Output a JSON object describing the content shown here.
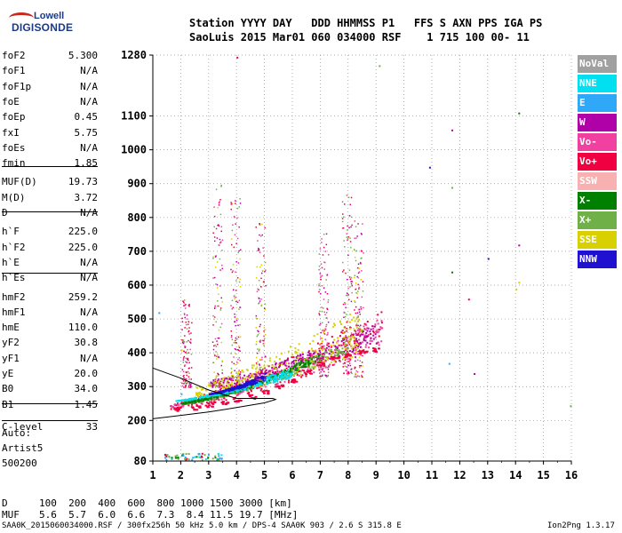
{
  "logo": {
    "line1": "Lowell",
    "line2": "DIGISONDE"
  },
  "header": {
    "line1": "Station YYYY DAY   DDD HHMMSS P1   FFS S AXN PPS IGA PS",
    "line2": "SaoLuis 2015 Mar01 060 034000 RSF    1 715 100 00- 11"
  },
  "params": [
    {
      "label": "foF2",
      "value": "5.300"
    },
    {
      "label": "foF1",
      "value": "N/A"
    },
    {
      "label": "foF1p",
      "value": "N/A"
    },
    {
      "label": "foE",
      "value": "N/A"
    },
    {
      "label": "foEp",
      "value": "0.45"
    },
    {
      "label": "fxI",
      "value": "5.75"
    },
    {
      "label": "foEs",
      "value": "N/A"
    },
    {
      "label": "fmin",
      "value": "1.85"
    },
    {
      "label": "MUF(D)",
      "value": "19.73"
    },
    {
      "label": "M(D)",
      "value": "3.72"
    },
    {
      "label": "D",
      "value": "N/A"
    },
    {
      "label": "h`F",
      "value": "225.0"
    },
    {
      "label": "h`F2",
      "value": "225.0"
    },
    {
      "label": "h`E",
      "value": "N/A"
    },
    {
      "label": "h`Es",
      "value": "N/A"
    },
    {
      "label": "hmF2",
      "value": "259.2"
    },
    {
      "label": "hmF1",
      "value": "N/A"
    },
    {
      "label": "hmE",
      "value": "110.0"
    },
    {
      "label": "yF2",
      "value": "30.8"
    },
    {
      "label": "yF1",
      "value": "N/A"
    },
    {
      "label": "yE",
      "value": "20.0"
    },
    {
      "label": "B0",
      "value": "34.0"
    },
    {
      "label": "B1",
      "value": "1.45"
    },
    {
      "label": "C-level",
      "value": "33"
    }
  ],
  "auto": {
    "line1": "Auto:",
    "line2": "Artist5",
    "line3": "500200"
  },
  "legend": [
    {
      "label": "NoVal",
      "color": "#a0a0a0"
    },
    {
      "label": "NNE",
      "color": "#00e0f0"
    },
    {
      "label": "E",
      "color": "#30a8f8"
    },
    {
      "label": "W",
      "color": "#b000a8"
    },
    {
      "label": "Vo-",
      "color": "#f040a0"
    },
    {
      "label": "Vo+",
      "color": "#f00040"
    },
    {
      "label": "SSW",
      "color": "#f8b0b0"
    },
    {
      "label": "X-",
      "color": "#008000"
    },
    {
      "label": "X+",
      "color": "#70b048"
    },
    {
      "label": "SSE",
      "color": "#d8d000"
    },
    {
      "label": "NNW",
      "color": "#2010d0"
    }
  ],
  "muf_table": {
    "d_label": "D",
    "d_values": "100  200  400  600  800 1000 1500 3000 [km]",
    "muf_label": "MUF",
    "muf_values": "5.6  5.7  6.0  6.6  7.3  8.4 11.5 19.7 [MHz]"
  },
  "footer": {
    "left": "SAA0K_2015060034000.RSF / 300fx256h 50 kHz 5.0 km / DPS-4 SAA0K 903 / 2.6 S 315.8 E",
    "right": "Ion2Png 1.3.17"
  },
  "chart_data": {
    "type": "scatter",
    "xlabel": "",
    "ylabel": "",
    "xlim": [
      1,
      16
    ],
    "ylim": [
      80,
      1280
    ],
    "x_ticks": [
      1,
      2,
      3,
      4,
      5,
      6,
      7,
      8,
      9,
      10,
      11,
      12,
      13,
      14,
      15,
      16
    ],
    "y_ticks": [
      80,
      200,
      300,
      400,
      500,
      600,
      700,
      800,
      900,
      1000,
      1100,
      1280
    ],
    "grid": true,
    "legend_position": "right",
    "ordinary_trace": [
      [
        1.85,
        235
      ],
      [
        2.5,
        240
      ],
      [
        3.0,
        248
      ],
      [
        3.5,
        255
      ],
      [
        4.0,
        262
      ],
      [
        4.5,
        272
      ],
      [
        5.0,
        285
      ],
      [
        5.5,
        302
      ],
      [
        6.0,
        320
      ],
      [
        6.5,
        345
      ],
      [
        7.0,
        368
      ],
      [
        7.5,
        385
      ],
      [
        8.0,
        395
      ],
      [
        8.5,
        405
      ],
      [
        9.0,
        410
      ]
    ],
    "model_profile": [
      [
        1.0,
        205
      ],
      [
        2.0,
        215
      ],
      [
        3.0,
        225
      ],
      [
        4.0,
        238
      ],
      [
        5.0,
        252
      ],
      [
        5.4,
        262
      ],
      [
        5.3,
        265
      ],
      [
        4.0,
        265
      ],
      [
        3.0,
        290
      ],
      [
        2.0,
        325
      ],
      [
        1.0,
        355
      ]
    ],
    "echo_bands": [
      {
        "x_range": [
          1.6,
          9.2
        ],
        "base": [
          235,
          415
        ],
        "spread": [
          15,
          120
        ],
        "color": "Vo+"
      },
      {
        "x_range": [
          1.6,
          9.2
        ],
        "base": [
          240,
          420
        ],
        "spread": [
          10,
          90
        ],
        "color": "Vo-"
      },
      {
        "x_range": [
          3.0,
          9.0
        ],
        "base": [
          300,
          430
        ],
        "spread": [
          20,
          60
        ],
        "color": "W"
      },
      {
        "x_range": [
          2.0,
          8.0
        ],
        "base": [
          250,
          400
        ],
        "spread": [
          5,
          40
        ],
        "color": "X+"
      },
      {
        "x_range": [
          2.5,
          8.5
        ],
        "base": [
          270,
          400
        ],
        "spread": [
          30,
          140
        ],
        "color": "SSE"
      },
      {
        "x_range": [
          2.0,
          7.0
        ],
        "base": [
          250,
          380
        ],
        "spread": [
          5,
          25
        ],
        "color": "X-"
      },
      {
        "x_range": [
          1.8,
          6.0
        ],
        "base": [
          260,
          330
        ],
        "spread": [
          0,
          30
        ],
        "color": "NNE"
      },
      {
        "x_range": [
          3.0,
          5.0
        ],
        "base": [
          280,
          320
        ],
        "spread": [
          0,
          20
        ],
        "color": "NNW"
      }
    ],
    "spread_columns": [
      {
        "x": 3.3,
        "y_range": [
          300,
          900
        ],
        "color": "SSE"
      },
      {
        "x": 3.95,
        "y_range": [
          320,
          860
        ],
        "color": "SSE"
      },
      {
        "x": 4.85,
        "y_range": [
          320,
          790
        ],
        "color": "SSE"
      },
      {
        "x": 7.1,
        "y_range": [
          330,
          760
        ],
        "color": "Vo-"
      },
      {
        "x": 7.95,
        "y_range": [
          340,
          880
        ],
        "color": "Vo+"
      },
      {
        "x": 8.35,
        "y_range": [
          330,
          800
        ],
        "color": "SSE"
      },
      {
        "x": 2.2,
        "y_range": [
          300,
          560
        ],
        "color": "Vo+"
      }
    ],
    "low_echoes": {
      "x_range": [
        1.4,
        3.5
      ],
      "y_range": [
        85,
        105
      ]
    },
    "outliers": [
      [
        2.0,
        410
      ],
      [
        11.7,
        1060
      ],
      [
        11.7,
        890
      ],
      [
        11.6,
        370
      ],
      [
        12.3,
        560
      ],
      [
        13.0,
        680
      ],
      [
        14.1,
        1110
      ],
      [
        14.1,
        610
      ],
      [
        14.1,
        720
      ],
      [
        15.95,
        245
      ],
      [
        1.2,
        520
      ],
      [
        4.0,
        1275
      ],
      [
        10.9,
        950
      ],
      [
        11.7,
        640
      ],
      [
        14.0,
        590
      ],
      [
        12.5,
        340
      ],
      [
        9.1,
        1250
      ],
      [
        2.0,
        280
      ]
    ]
  }
}
